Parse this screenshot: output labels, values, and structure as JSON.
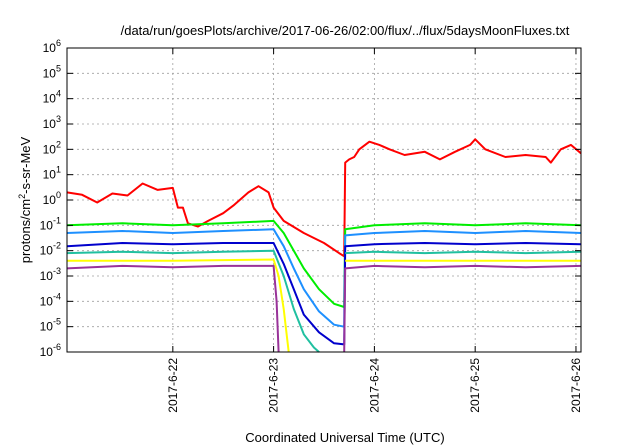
{
  "chart_data": {
    "type": "line",
    "title": "/data/run/goesPlots/archive/2017-06-26/02:00/flux/../flux/5daysMoonFluxes.txt",
    "xlabel": "Coordinated Universal Time (UTC)",
    "ylabel_parts": [
      "protons/cm",
      "2",
      "-s-sr-MeV"
    ],
    "yscale": "log",
    "ylim": [
      1e-06,
      1000000.0
    ],
    "xlim": [
      -1.05,
      4.05
    ],
    "x_units": "days since 2017-06-22",
    "x_ticks": [
      {
        "x": 0,
        "label": "2017-6-22"
      },
      {
        "x": 1,
        "label": "2017-6-23"
      },
      {
        "x": 2,
        "label": "2017-6-24"
      },
      {
        "x": 3,
        "label": "2017-6-25"
      },
      {
        "x": 4,
        "label": "2017-6-26"
      }
    ],
    "y_ticks": [
      {
        "exp": -6,
        "base": "10",
        "sup": "-6"
      },
      {
        "exp": -5,
        "base": "10",
        "sup": "-5"
      },
      {
        "exp": -4,
        "base": "10",
        "sup": "-4"
      },
      {
        "exp": -3,
        "base": "10",
        "sup": "-3"
      },
      {
        "exp": -2,
        "base": "10",
        "sup": "-2"
      },
      {
        "exp": -1,
        "base": "10",
        "sup": "-1"
      },
      {
        "exp": 0,
        "base": "10",
        "sup": "0"
      },
      {
        "exp": 1,
        "base": "10",
        "sup": "1"
      },
      {
        "exp": 2,
        "base": "10",
        "sup": "2"
      },
      {
        "exp": 3,
        "base": "10",
        "sup": "3"
      },
      {
        "exp": 4,
        "base": "10",
        "sup": "4"
      },
      {
        "exp": 5,
        "base": "10",
        "sup": "5"
      },
      {
        "exp": 6,
        "base": "10",
        "sup": "6"
      }
    ],
    "grid": true,
    "series": [
      {
        "color": "#ff0000",
        "points": [
          [
            -1.05,
            2.0
          ],
          [
            -0.9,
            1.6
          ],
          [
            -0.75,
            0.8
          ],
          [
            -0.6,
            1.8
          ],
          [
            -0.45,
            1.5
          ],
          [
            -0.3,
            4.5
          ],
          [
            -0.15,
            2.5
          ],
          [
            0.0,
            3.0
          ],
          [
            0.05,
            0.5
          ],
          [
            0.1,
            0.5
          ],
          [
            0.15,
            0.12
          ],
          [
            0.25,
            0.09
          ],
          [
            0.35,
            0.15
          ],
          [
            0.5,
            0.3
          ],
          [
            0.6,
            0.6
          ],
          [
            0.75,
            2.0
          ],
          [
            0.85,
            3.5
          ],
          [
            0.95,
            2.0
          ],
          [
            1.0,
            0.5
          ],
          [
            1.1,
            0.15
          ],
          [
            1.3,
            0.05
          ],
          [
            1.5,
            0.02
          ],
          [
            1.65,
            0.008
          ],
          [
            1.7,
            0.006
          ],
          [
            1.71,
            30
          ],
          [
            1.75,
            40
          ],
          [
            1.8,
            50
          ],
          [
            1.85,
            100
          ],
          [
            1.95,
            200
          ],
          [
            2.05,
            150
          ],
          [
            2.15,
            100
          ],
          [
            2.3,
            60
          ],
          [
            2.5,
            80
          ],
          [
            2.65,
            40
          ],
          [
            2.8,
            80
          ],
          [
            2.95,
            150
          ],
          [
            3.0,
            250
          ],
          [
            3.1,
            100
          ],
          [
            3.3,
            50
          ],
          [
            3.5,
            60
          ],
          [
            3.7,
            50
          ],
          [
            3.75,
            30
          ],
          [
            3.85,
            100
          ],
          [
            3.95,
            150
          ],
          [
            4.05,
            70
          ]
        ]
      },
      {
        "color": "#00ee00",
        "points": [
          [
            -1.05,
            0.1
          ],
          [
            -0.5,
            0.12
          ],
          [
            0.0,
            0.1
          ],
          [
            0.5,
            0.12
          ],
          [
            1.0,
            0.15
          ],
          [
            1.1,
            0.05
          ],
          [
            1.2,
            0.01
          ],
          [
            1.3,
            0.002
          ],
          [
            1.45,
            0.0003
          ],
          [
            1.6,
            8e-05
          ],
          [
            1.7,
            6e-05
          ],
          [
            1.71,
            0.07
          ],
          [
            2.0,
            0.1
          ],
          [
            2.5,
            0.12
          ],
          [
            3.0,
            0.1
          ],
          [
            3.5,
            0.12
          ],
          [
            4.05,
            0.1
          ]
        ]
      },
      {
        "color": "#1e90ff",
        "points": [
          [
            -1.05,
            0.05
          ],
          [
            -0.5,
            0.06
          ],
          [
            0.0,
            0.05
          ],
          [
            0.5,
            0.06
          ],
          [
            1.0,
            0.07
          ],
          [
            1.1,
            0.015
          ],
          [
            1.2,
            0.002
          ],
          [
            1.3,
            0.0003
          ],
          [
            1.45,
            4e-05
          ],
          [
            1.6,
            1.2e-05
          ],
          [
            1.7,
            1e-05
          ],
          [
            1.71,
            0.04
          ],
          [
            2.0,
            0.05
          ],
          [
            2.5,
            0.06
          ],
          [
            3.0,
            0.05
          ],
          [
            3.5,
            0.06
          ],
          [
            4.05,
            0.05
          ]
        ]
      },
      {
        "color": "#0000cc",
        "points": [
          [
            -1.05,
            0.015
          ],
          [
            -0.5,
            0.02
          ],
          [
            0.0,
            0.018
          ],
          [
            0.5,
            0.02
          ],
          [
            1.0,
            0.02
          ],
          [
            1.1,
            0.003
          ],
          [
            1.2,
            0.0003
          ],
          [
            1.3,
            3e-05
          ],
          [
            1.45,
            6e-06
          ],
          [
            1.6,
            2.2e-06
          ],
          [
            1.7,
            2e-06
          ],
          [
            1.71,
            0.015
          ],
          [
            2.0,
            0.018
          ],
          [
            2.5,
            0.02
          ],
          [
            3.0,
            0.018
          ],
          [
            3.5,
            0.02
          ],
          [
            4.05,
            0.018
          ]
        ]
      },
      {
        "color": "#20c0a0",
        "points": [
          [
            -1.05,
            0.008
          ],
          [
            -0.5,
            0.009
          ],
          [
            0.0,
            0.008
          ],
          [
            0.5,
            0.009
          ],
          [
            1.0,
            0.01
          ],
          [
            1.1,
            0.001
          ],
          [
            1.2,
            5e-05
          ],
          [
            1.3,
            5e-06
          ],
          [
            1.4,
            1.5e-06
          ],
          [
            1.45,
            1e-06
          ]
        ]
      },
      {
        "color": "#20c0a0",
        "points": [
          [
            1.71,
            0.008
          ],
          [
            2.0,
            0.009
          ],
          [
            2.5,
            0.008
          ],
          [
            3.0,
            0.009
          ],
          [
            3.5,
            0.008
          ],
          [
            4.05,
            0.009
          ]
        ]
      },
      {
        "color": "#ffff00",
        "points": [
          [
            -1.05,
            0.004
          ],
          [
            0.0,
            0.004
          ],
          [
            1.0,
            0.0045
          ],
          [
            1.05,
            0.001
          ],
          [
            1.1,
            5e-05
          ],
          [
            1.15,
            1e-06
          ]
        ]
      },
      {
        "color": "#ffff00",
        "points": [
          [
            1.71,
            0.004
          ],
          [
            2.5,
            0.004
          ],
          [
            3.5,
            0.004
          ],
          [
            4.05,
            0.004
          ]
        ]
      },
      {
        "color": "#993399",
        "points": [
          [
            -1.05,
            0.002
          ],
          [
            -0.5,
            0.0025
          ],
          [
            0.0,
            0.0022
          ],
          [
            0.5,
            0.0025
          ],
          [
            1.0,
            0.0025
          ],
          [
            1.03,
            0.0001
          ],
          [
            1.05,
            1e-06
          ]
        ]
      },
      {
        "color": "#993399",
        "points": [
          [
            1.7,
            1e-06
          ],
          [
            1.71,
            0.002
          ],
          [
            2.0,
            0.0025
          ],
          [
            2.5,
            0.0022
          ],
          [
            3.0,
            0.0025
          ],
          [
            3.5,
            0.0022
          ],
          [
            4.05,
            0.0025
          ]
        ]
      }
    ]
  }
}
